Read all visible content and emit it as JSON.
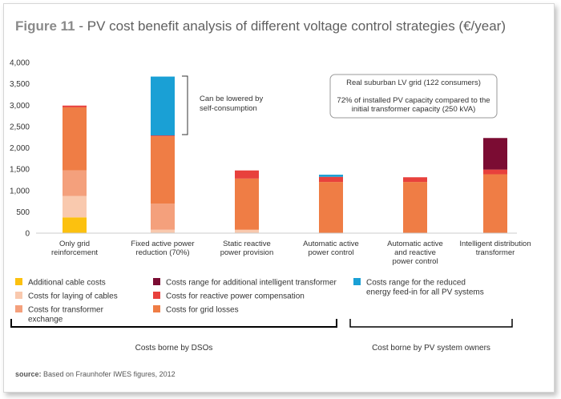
{
  "figure": {
    "label": "Figure 11",
    "title": " - PV cost benefit analysis of different voltage control strategies (€/year)"
  },
  "chart_data": {
    "type": "bar",
    "stacked": true,
    "categories": [
      [
        "Only grid",
        "reinforcement"
      ],
      [
        "Fixed active power",
        "reduction (70%)"
      ],
      [
        "Static reactive",
        "power provision"
      ],
      [
        "Automatic active",
        "power control"
      ],
      [
        "Automatic active",
        "and reactive",
        "power control"
      ],
      [
        "Intelligent distribution",
        "transformer"
      ]
    ],
    "series": [
      {
        "name": "Additional cable costs",
        "color": "#fcc10f",
        "values": [
          370,
          0,
          0,
          0,
          0,
          0
        ]
      },
      {
        "name": "Costs for laying of cables",
        "color": "#f9c9ae",
        "values": [
          500,
          80,
          80,
          0,
          0,
          0
        ]
      },
      {
        "name": "Costs for transformer exchange",
        "color": "#f4a07c",
        "values": [
          600,
          610,
          0,
          0,
          0,
          0
        ]
      },
      {
        "name": "Costs for grid losses",
        "color": "#ef7d45",
        "values": [
          1480,
          1580,
          1200,
          1200,
          1200,
          1380
        ]
      },
      {
        "name": "Costs for reactive power compensation",
        "color": "#e8413c",
        "values": [
          40,
          20,
          190,
          120,
          110,
          110
        ]
      },
      {
        "name": "Costs range for additional intelligent transformer",
        "color": "#7b0c33",
        "values": [
          0,
          0,
          0,
          0,
          0,
          740
        ]
      },
      {
        "name": "Costs range for the reduced energy feed-in for all PV systems",
        "color": "#1aa0d5",
        "values": [
          0,
          1380,
          0,
          50,
          0,
          0
        ]
      }
    ],
    "legend_columns": [
      [
        {
          "series": 0,
          "lines": [
            "Additional cable costs"
          ]
        },
        {
          "series": 1,
          "lines": [
            "Costs for laying of cables"
          ]
        },
        {
          "series": 2,
          "lines": [
            "Costs for transformer",
            "exchange"
          ]
        }
      ],
      [
        {
          "series": 5,
          "lines": [
            "Costs range for additional intelligent transformer"
          ]
        },
        {
          "series": 4,
          "lines": [
            "Costs for reactive power compensation"
          ]
        },
        {
          "series": 3,
          "lines": [
            "Costs for grid losses"
          ]
        }
      ],
      [
        {
          "series": 6,
          "lines": [
            "Costs range for the reduced",
            "energy feed-in for all PV systems"
          ]
        }
      ]
    ],
    "ylim": [
      0,
      4000
    ],
    "yticks": [
      "0",
      "500",
      "1,000",
      "1,500",
      "2,000",
      "2,500",
      "3,000",
      "3,500",
      "4,000"
    ],
    "ytick_values": [
      0,
      500,
      1000,
      1500,
      2000,
      2500,
      3000,
      3500,
      4000
    ],
    "annotations": {
      "bracket_note": [
        "Can be lowered by",
        "self-consumption"
      ],
      "info_box": [
        "Real suburban LV grid (122 consumers)",
        "",
        "72% of installed PV capacity compared to the",
        "initial transformer capacity (250 kVA)"
      ]
    },
    "groups": [
      {
        "label": "Costs borne by DSOs"
      },
      {
        "label": "Cost borne by PV system owners"
      }
    ]
  },
  "source": {
    "label": "source:",
    "text": " Based on Fraunhofer IWES figures, 2012"
  }
}
